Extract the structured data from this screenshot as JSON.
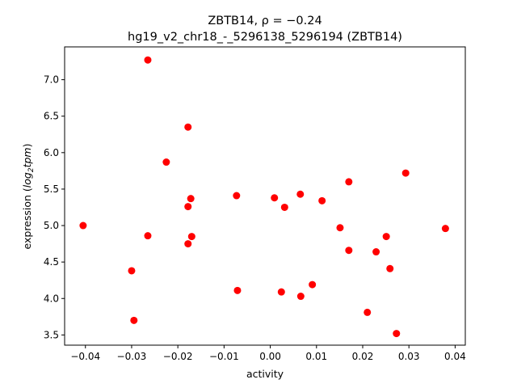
{
  "chart_data": {
    "type": "scatter",
    "title_line1": "ZBTB14, ρ = −0.24",
    "title_line2": "hg19_v2_chr18_-_5296138_5296194 (ZBTB14)",
    "xlabel": "activity",
    "ylabel_prefix": "expression (",
    "ylabel_math": "log",
    "ylabel_sub": "2",
    "ylabel_math2": "tpm",
    "ylabel_suffix": ")",
    "xlim": [
      -0.0445,
      0.0422
    ],
    "ylim": [
      3.36,
      7.45
    ],
    "xticks": [
      -0.04,
      -0.03,
      -0.02,
      -0.01,
      0.0,
      0.01,
      0.02,
      0.03,
      0.04
    ],
    "xtick_labels": [
      "−0.04",
      "−0.03",
      "−0.02",
      "−0.01",
      "0.00",
      "0.01",
      "0.02",
      "0.03",
      "0.04"
    ],
    "yticks": [
      3.5,
      4.0,
      4.5,
      5.0,
      5.5,
      6.0,
      6.5,
      7.0
    ],
    "ytick_labels": [
      "3.5",
      "4.0",
      "4.5",
      "5.0",
      "5.5",
      "6.0",
      "6.5",
      "7.0"
    ],
    "marker_color": "#ff0000",
    "points": [
      {
        "x": -0.0405,
        "y": 5.0
      },
      {
        "x": -0.03,
        "y": 4.38
      },
      {
        "x": -0.0295,
        "y": 3.7
      },
      {
        "x": -0.0265,
        "y": 7.27
      },
      {
        "x": -0.0265,
        "y": 4.86
      },
      {
        "x": -0.0225,
        "y": 5.87
      },
      {
        "x": -0.0178,
        "y": 6.35
      },
      {
        "x": -0.0178,
        "y": 5.26
      },
      {
        "x": -0.0178,
        "y": 4.75
      },
      {
        "x": -0.0172,
        "y": 5.37
      },
      {
        "x": -0.017,
        "y": 4.85
      },
      {
        "x": -0.0073,
        "y": 5.41
      },
      {
        "x": -0.0071,
        "y": 4.11
      },
      {
        "x": 0.0009,
        "y": 5.38
      },
      {
        "x": 0.0024,
        "y": 4.09
      },
      {
        "x": 0.0031,
        "y": 5.25
      },
      {
        "x": 0.0065,
        "y": 5.43
      },
      {
        "x": 0.0066,
        "y": 4.03
      },
      {
        "x": 0.0091,
        "y": 4.19
      },
      {
        "x": 0.0112,
        "y": 5.34
      },
      {
        "x": 0.0151,
        "y": 4.97
      },
      {
        "x": 0.017,
        "y": 5.6
      },
      {
        "x": 0.017,
        "y": 4.66
      },
      {
        "x": 0.021,
        "y": 3.81
      },
      {
        "x": 0.0229,
        "y": 4.64
      },
      {
        "x": 0.0251,
        "y": 4.85
      },
      {
        "x": 0.0259,
        "y": 4.41
      },
      {
        "x": 0.0273,
        "y": 3.52
      },
      {
        "x": 0.0293,
        "y": 5.72
      },
      {
        "x": 0.0379,
        "y": 4.96
      }
    ]
  }
}
